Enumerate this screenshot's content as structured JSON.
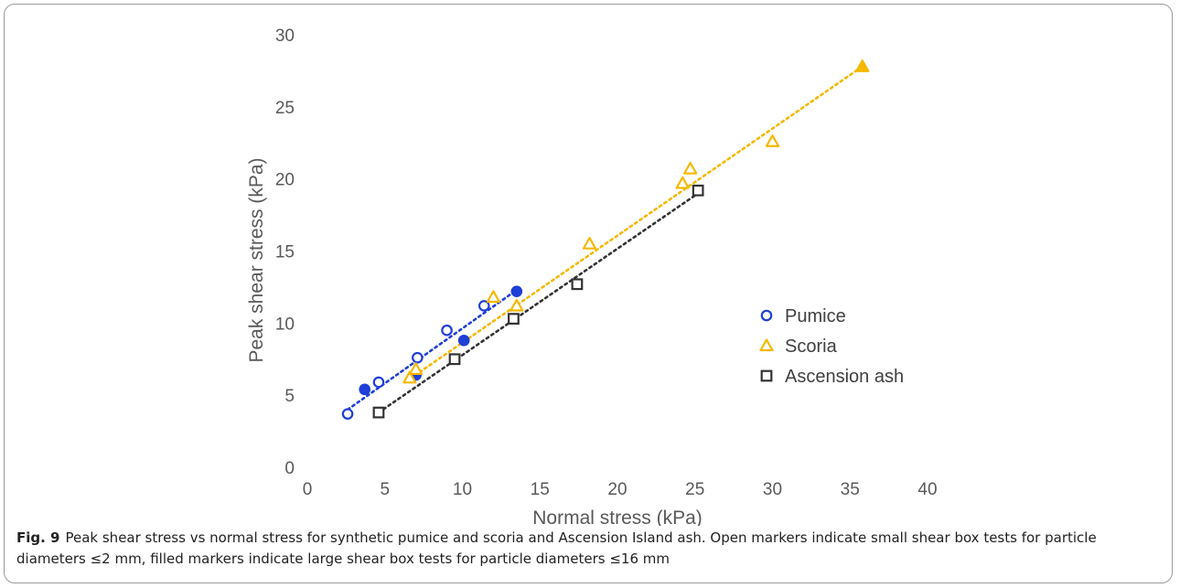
{
  "chart_data": {
    "type": "scatter",
    "xlabel": "Normal stress (kPa)",
    "ylabel": "Peak shear stress (kPa)",
    "xlim": [
      0,
      40
    ],
    "ylim": [
      0,
      30
    ],
    "xticks": [
      0,
      5,
      10,
      15,
      20,
      25,
      30,
      35,
      40
    ],
    "yticks": [
      0,
      5,
      10,
      15,
      20,
      25,
      30
    ],
    "grid": false,
    "legend_position": "right-middle",
    "series": [
      {
        "name": "Pumice",
        "color": "#1f3fd6",
        "marker": "circle",
        "open_points": [
          [
            2.6,
            3.7
          ],
          [
            4.6,
            5.9
          ],
          [
            7.1,
            7.6
          ],
          [
            9.0,
            9.5
          ],
          [
            11.4,
            11.2
          ]
        ],
        "filled_points": [
          [
            3.7,
            5.4
          ],
          [
            7.0,
            6.4
          ],
          [
            10.1,
            8.8
          ],
          [
            13.5,
            12.2
          ]
        ],
        "trend": [
          [
            2.6,
            4.0
          ],
          [
            13.5,
            12.3
          ]
        ]
      },
      {
        "name": "Scoria",
        "color": "#f5b800",
        "marker": "triangle",
        "open_points": [
          [
            6.6,
            6.2
          ],
          [
            7.0,
            6.8
          ],
          [
            12.0,
            11.8
          ],
          [
            13.5,
            11.2
          ],
          [
            18.2,
            15.5
          ],
          [
            24.2,
            19.7
          ],
          [
            24.7,
            20.7
          ],
          [
            30.0,
            22.6
          ]
        ],
        "filled_points": [
          [
            35.8,
            27.8
          ]
        ],
        "trend": [
          [
            6.3,
            5.9
          ],
          [
            35.8,
            27.8
          ]
        ]
      },
      {
        "name": "Ascension ash",
        "color": "#333333",
        "marker": "square",
        "open_points": [
          [
            4.6,
            3.8
          ],
          [
            9.5,
            7.5
          ],
          [
            13.3,
            10.3
          ],
          [
            17.4,
            12.7
          ],
          [
            25.2,
            19.2
          ]
        ],
        "filled_points": [],
        "trend": [
          [
            4.6,
            3.8
          ],
          [
            25.2,
            19.0
          ]
        ]
      }
    ]
  },
  "caption": {
    "label": "Fig. 9",
    "text": "Peak shear stress vs normal stress for synthetic pumice and scoria and Ascension Island ash. Open markers indicate small shear box tests for particle diameters ≤2 mm, filled markers indicate large shear box tests for particle diameters ≤16 mm"
  }
}
